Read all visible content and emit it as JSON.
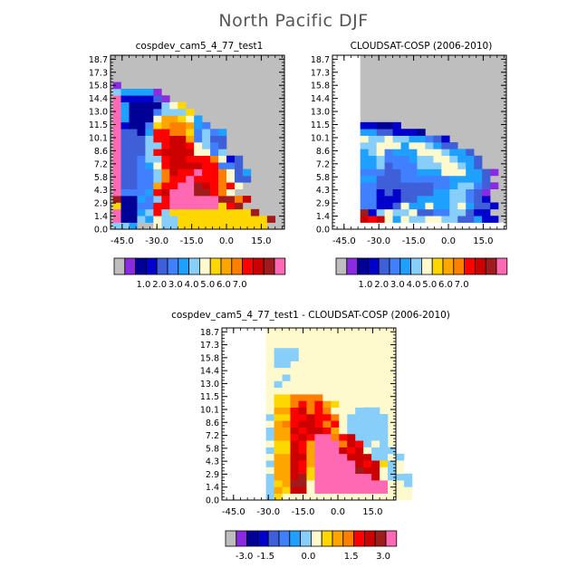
{
  "page": {
    "title": "North Pacific DJF"
  },
  "colorbars": {
    "abs": {
      "colors": [
        "#bebebe",
        "#8a2be2",
        "#000096",
        "#0000cd",
        "#3f5fd8",
        "#4080ff",
        "#1ea0ff",
        "#87cefa",
        "#fffacd",
        "#ffd700",
        "#ffa500",
        "#ff7f00",
        "#ff0000",
        "#cd0000",
        "#a01b1b",
        "#ff69b4"
      ],
      "labels": [
        "1.0",
        "2.0",
        "3.0",
        "4.0",
        "5.0",
        "6.0",
        "7.0"
      ]
    },
    "diff": {
      "colors": [
        "#bebebe",
        "#8a2be2",
        "#000096",
        "#0000cd",
        "#3f5fd8",
        "#4080ff",
        "#1ea0ff",
        "#87cefa",
        "#fffacd",
        "#ffd700",
        "#ffa500",
        "#ff7f00",
        "#ff0000",
        "#cd0000",
        "#a01b1b",
        "#ff69b4"
      ],
      "labels": [
        "-3.0",
        "-1.5",
        "0.0",
        "1.5",
        "3.0"
      ]
    }
  },
  "chart_data": [
    {
      "type": "heatmap",
      "title": "cospdev_cam5_4_77_test1",
      "y_tick_labels": [
        "0.0",
        "1.4",
        "2.9",
        "4.3",
        "5.8",
        "7.2",
        "8.6",
        "10.1",
        "11.5",
        "13.0",
        "14.4",
        "15.8",
        "17.3",
        "18.7"
      ],
      "x_tick_labels": [
        "-45.0",
        "-30.0",
        "-15.0",
        "0.0",
        "15.0"
      ],
      "x_ticks": [
        -45,
        -30,
        -15,
        0,
        15
      ],
      "xlim": [
        -50,
        25
      ],
      "n_rows": 26,
      "background": "#bebebe",
      "rows": [
        [
          -49,
          "HHGAAIHHJJJJJJJJJJJ"
        ],
        [
          -49,
          "PCCHGIHHJJJJJJJJJJJO"
        ],
        [
          -49,
          "PCCGHMHJJJJJJJJJJO"
        ],
        [
          -49,
          "JCCFFMMPPPPPPJMO"
        ],
        [
          -49,
          "OCCGFHMPPPPPPOOLN"
        ],
        [
          -49,
          "PFFFGMNPPPOOMLI"
        ],
        [
          -49,
          "PEEFFKMMPPONMLMI"
        ],
        [
          -49,
          "PEEFFHLMMPMMMLIEE"
        ],
        [
          -49,
          "PEEFFHLNMMPMMLIEG"
        ],
        [
          -49,
          "PEEFGIMNNNNMMFFE"
        ],
        [
          -49,
          "PEEFHHMNNMMMLIDE"
        ],
        [
          -49,
          "PEEEHMNNNNIIFH"
        ],
        [
          -49,
          "PEEEHHMNNMIHFE"
        ],
        [
          -49,
          "PEEEHMMNNKFHEE"
        ],
        [
          -49,
          "PEECGMMLLJFHFG"
        ],
        [
          -49,
          "PDCCFJKLLKGF"
        ],
        [
          -49,
          "PGCCCIKKJIG"
        ],
        [
          -49,
          "PGCCCFHHHJ"
        ],
        [
          -49,
          "PGCCCCHIJ"
        ],
        [
          -49,
          "PDDDDEB"
        ],
        [
          -49,
          "HGGGGB"
        ],
        [
          -49,
          "B"
        ]
      ]
    },
    {
      "type": "heatmap",
      "title": "CLOUDSAT-COSP (2006-2010)",
      "y_tick_labels": [
        "0.0",
        "1.4",
        "2.9",
        "4.3",
        "5.8",
        "7.2",
        "8.6",
        "10.1",
        "11.5",
        "13.0",
        "14.4",
        "15.8",
        "17.3",
        "18.7"
      ],
      "x_tick_labels": [
        "-45.0",
        "-30.0",
        "-15.0",
        "0.0",
        "15.0"
      ],
      "x_ticks": [
        -45,
        -30,
        -15,
        0,
        15
      ],
      "xlim": [
        -50,
        25
      ],
      "n_rows": 26,
      "background": "#bebebe",
      "white_left_until": -38,
      "white_bottom_rows": 1,
      "rows": [
        [
          -38,
          "NMNIGIHHIIHHEEGDD"
        ],
        [
          -38,
          "ODHIHHIEEFFHHEDD"
        ],
        [
          -38,
          "FFDDEIGGIGGHIGEED"
        ],
        [
          -38,
          "FFDDDEEGGGGHHFED"
        ],
        [
          -38,
          "FFDEDEEEEGGHHFEB"
        ],
        [
          -38,
          "FFEEEEEEEFFGHHFEB"
        ],
        [
          -38,
          "GGEEEFFFFFFGGGGE"
        ],
        [
          -38,
          "FFFEEFFGGGIIIGGEB"
        ],
        [
          -38,
          "GGHEFFFHHHIIHGE"
        ],
        [
          -38,
          "GGHFFFGHHIIHGGE"
        ],
        [
          -38,
          "GHIFGGGIIIHGGE"
        ],
        [
          -38,
          "HHIIIGIIHGEE"
        ],
        [
          -38,
          "IHHIHHGGFED"
        ],
        [
          -38,
          "GGEEDDDC"
        ],
        [
          -38,
          "DDCCD"
        ]
      ]
    },
    {
      "type": "heatmap",
      "title": "cospdev_cam5_4_77_test1 - CLOUDSAT-COSP (2006-2010)",
      "y_tick_labels": [
        "0.0",
        "1.4",
        "2.9",
        "4.3",
        "5.8",
        "7.2",
        "8.6",
        "10.1",
        "11.5",
        "13.0",
        "14.4",
        "15.8",
        "17.3",
        "18.7"
      ],
      "x_tick_labels": [
        "-45.0",
        "-30.0",
        "-15.0",
        "0.0",
        "15.0"
      ],
      "x_ticks": [
        -45,
        -30,
        -15,
        0,
        15
      ],
      "xlim": [
        -50,
        25
      ],
      "n_rows": 26,
      "background": "#fffacd",
      "white_left_until": -31,
      "rows": [
        [
          -31,
          "HJIIIIIIIIIIIIIIII"
        ],
        [
          -31,
          "HKJNNIPPPPPPPPPIII"
        ],
        [
          -31,
          "HJKOOIPPPPPPPPPIIH"
        ],
        [
          -31,
          "HKKNOJPPPPPPPNIHHH"
        ],
        [
          -31,
          "IKKNMJPPPPPONNIHI"
        ],
        [
          -31,
          "HKKNMKPPPPPNMNJHI"
        ],
        [
          -31,
          "IKKNNKPPPPNNNHHIH"
        ],
        [
          -31,
          "HJJNMKPPPNMNIHHH"
        ],
        [
          -31,
          "IJJNMKPPPLNMHIH"
        ],
        [
          -31,
          "HKKMNMPPLMNHHHH"
        ],
        [
          -31,
          "HKKNMNNMKIHHHHH"
        ],
        [
          -31,
          "IKLMNNMLMIHHHHH"
        ],
        [
          -31,
          "HJJMMNMMLIHHHHH"
        ],
        [
          -31,
          "IKKMNLMLIIIHHH"
        ],
        [
          -31,
          "IJJLMLMKJIII"
        ],
        [
          -31,
          "IJJLLLLIIII"
        ],
        [
          -31,
          "IIIIIIII"
        ],
        [
          -31,
          "IHII"
        ],
        [
          -31,
          "IIHII"
        ],
        [
          -31,
          "IIIIII"
        ],
        [
          -31,
          "IHH"
        ],
        [
          -31,
          "IHHH"
        ],
        [
          -31,
          "IHHH"
        ],
        [
          -31,
          "IIII"
        ]
      ]
    }
  ]
}
